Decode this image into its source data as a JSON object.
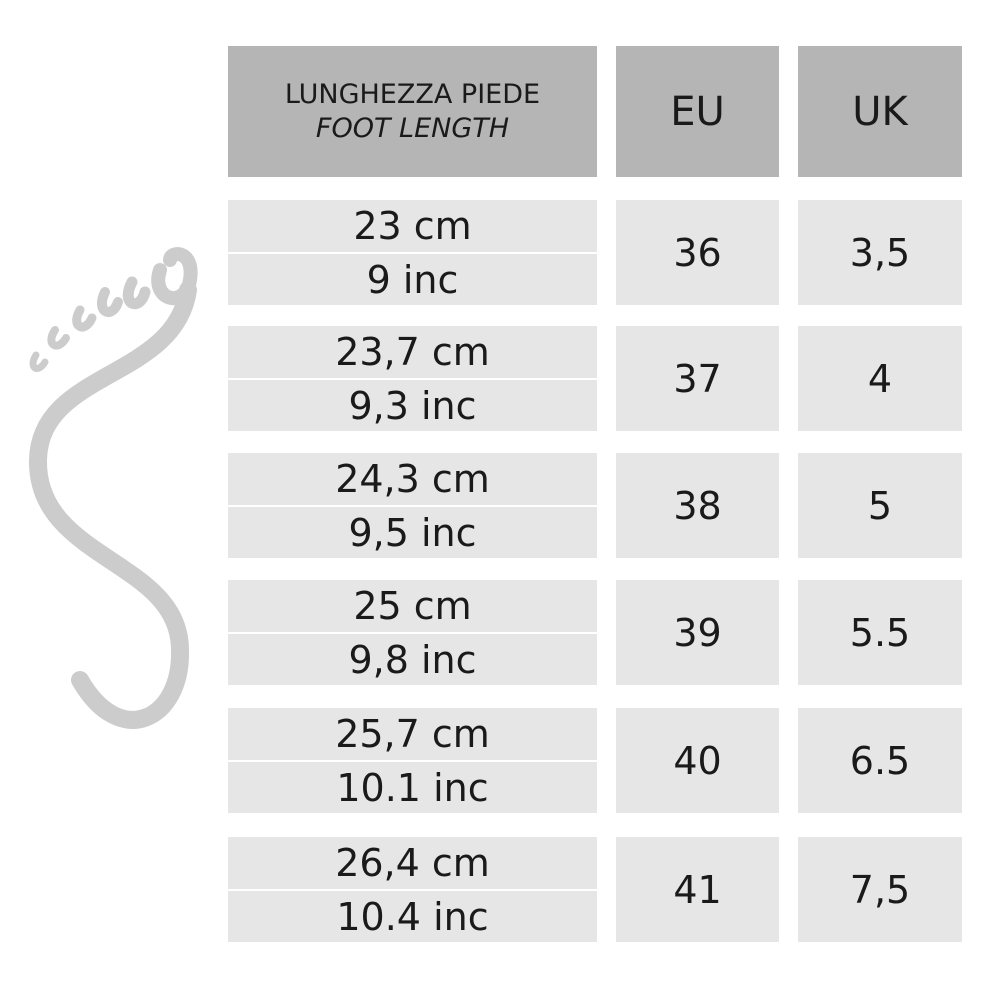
{
  "header": {
    "foot_length_it": "LUNGHEZZA PIEDE",
    "foot_length_en": "FOOT LENGTH",
    "eu": "EU",
    "uk": "UK"
  },
  "rows": [
    {
      "cm": "23 cm",
      "inc": "9 inc",
      "eu": "36",
      "uk": "3,5"
    },
    {
      "cm": "23,7 cm",
      "inc": "9,3 inc",
      "eu": "37",
      "uk": "4"
    },
    {
      "cm": "24,3 cm",
      "inc": "9,5 inc",
      "eu": "38",
      "uk": "5"
    },
    {
      "cm": "25 cm",
      "inc": "9,8 inc",
      "eu": "39",
      "uk": "5.5"
    },
    {
      "cm": "25,7 cm",
      "inc": "10.1 inc",
      "eu": "40",
      "uk": "6.5"
    },
    {
      "cm": "26,4 cm",
      "inc": "10.4 inc",
      "eu": "41",
      "uk": "7,5"
    }
  ],
  "colors": {
    "header_bg": "#b5b5b5",
    "cell_bg": "#e6e6e6",
    "foot_icon": "#cccccc"
  },
  "icon": "footprint-icon"
}
